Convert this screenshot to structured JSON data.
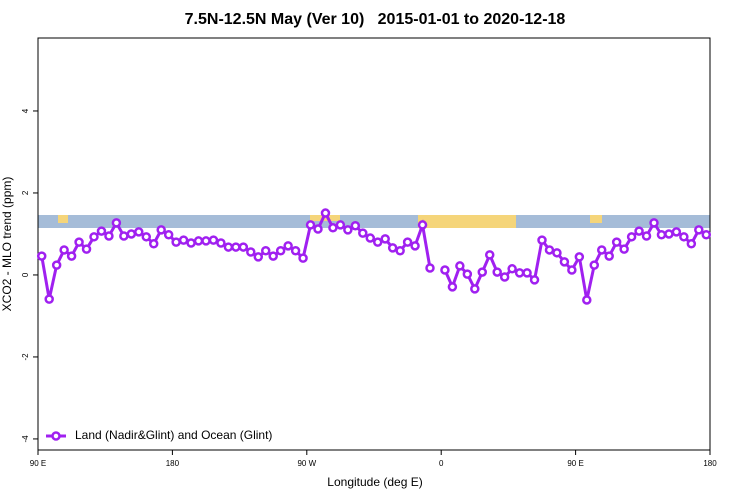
{
  "chart_data": {
    "type": "line",
    "title": "7.5N-12.5N May (Ver 10)   2015-01-01 to 2020-12-18",
    "x_label": "Longitude (deg E)",
    "y_label": "XCO2 - MLO trend (ppm)",
    "xlim": [
      90,
      540
    ],
    "ylim": [
      -4.27,
      5.78
    ],
    "xticks": [
      {
        "value": 90,
        "label": "90 E"
      },
      180,
      {
        "value": 270,
        "label": "90 W"
      },
      {
        "value": 360,
        "label": "0"
      },
      {
        "value": 450,
        "label": "90 E"
      },
      {
        "value": 540,
        "label": "180"
      }
    ],
    "yticks": [
      -4,
      -2,
      0,
      2,
      4
    ],
    "legend": "bottom-left",
    "x": [
      92.5,
      97.5,
      102.5,
      107.5,
      112.5,
      117.5,
      122.5,
      127.5,
      132.5,
      137.5,
      142.5,
      147.5,
      152.5,
      157.5,
      162.5,
      167.5,
      172.5,
      177.5,
      182.5,
      187.5,
      192.5,
      197.5,
      202.5,
      207.5,
      212.5,
      217.5,
      222.5,
      227.5,
      232.5,
      237.5,
      242.5,
      247.5,
      252.5,
      257.5,
      262.5,
      267.5,
      272.5,
      277.5,
      282.5,
      287.5,
      292.5,
      297.5,
      302.5,
      307.5,
      312.5,
      317.5,
      322.5,
      327.5,
      332.5,
      337.5,
      342.5,
      347.5,
      352.5,
      357.5,
      362.5,
      367.5,
      372.5,
      377.5,
      382.5,
      387.5,
      392.5,
      397.5,
      402.5,
      407.5,
      412.5,
      417.5,
      422.5,
      427.5,
      432.5,
      437.5,
      442.5,
      447.5,
      452.5,
      457.5,
      462.5,
      467.5,
      472.5,
      477.5,
      482.5,
      487.5,
      492.5,
      497.5,
      502.5,
      507.5,
      512.5,
      517.5,
      522.5,
      527.5,
      532.5,
      537.5
    ],
    "series": [
      {
        "name": "Land (Nadir&Glint) and Ocean (Glint)",
        "color": "#a020f0",
        "values": [
          0.46,
          -0.59,
          0.24,
          0.61,
          0.46,
          0.8,
          0.63,
          0.93,
          1.07,
          0.95,
          1.27,
          0.95,
          1.0,
          1.05,
          0.93,
          0.76,
          1.1,
          0.98,
          0.8,
          0.85,
          0.78,
          0.83,
          0.83,
          0.85,
          0.78,
          0.68,
          0.68,
          0.68,
          0.56,
          0.44,
          0.59,
          0.46,
          0.59,
          0.71,
          0.59,
          0.41,
          1.22,
          1.12,
          1.51,
          1.15,
          1.22,
          1.1,
          1.2,
          1.02,
          0.9,
          0.8,
          0.88,
          0.66,
          0.59,
          0.8,
          0.71,
          1.22,
          0.17,
          null,
          0.12,
          -0.29,
          0.22,
          0.02,
          -0.34,
          0.07,
          0.49,
          0.07,
          -0.05,
          0.15,
          0.05,
          0.05,
          -0.12,
          0.85,
          0.61,
          0.54,
          0.32,
          0.12,
          0.44,
          -0.61,
          0.24,
          0.61,
          0.46,
          0.8,
          0.63,
          0.93,
          1.07,
          0.95,
          1.27,
          0.98,
          1.0,
          1.05,
          0.93,
          0.76,
          1.1,
          0.98
        ]
      }
    ]
  }
}
